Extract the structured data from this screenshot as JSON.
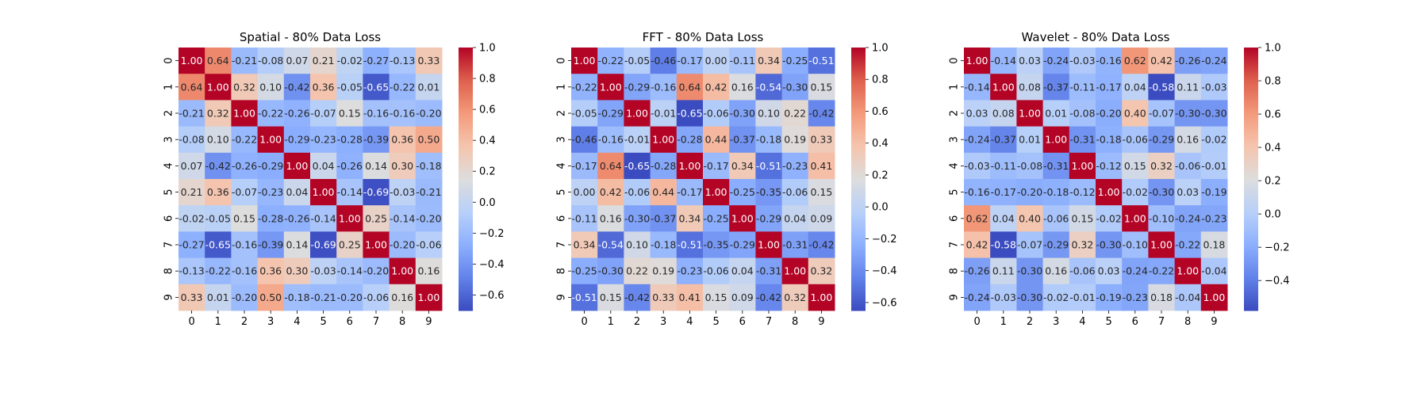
{
  "chart_data": [
    {
      "type": "heatmap",
      "title": "Spatial - 80% Data Loss",
      "x_labels": [
        "0",
        "1",
        "2",
        "3",
        "4",
        "5",
        "6",
        "7",
        "8",
        "9"
      ],
      "y_labels": [
        "0",
        "1",
        "2",
        "3",
        "4",
        "5",
        "6",
        "7",
        "8",
        "9"
      ],
      "colormap": "coolwarm",
      "vmin": -0.7,
      "vmax": 1.0,
      "colorbar_ticks": [
        1.0,
        0.8,
        0.6,
        0.4,
        0.2,
        0.0,
        -0.2,
        -0.4,
        -0.6
      ],
      "colorbar_tick_labels": [
        "1.0",
        "0.8",
        "0.6",
        "0.4",
        "0.2",
        "0.0",
        "−0.2",
        "−0.4",
        "−0.6"
      ],
      "values": [
        [
          1.0,
          0.64,
          -0.21,
          -0.08,
          0.07,
          0.21,
          -0.02,
          -0.27,
          -0.13,
          0.33
        ],
        [
          0.64,
          1.0,
          0.32,
          0.1,
          -0.42,
          0.36,
          -0.05,
          -0.65,
          -0.22,
          0.01
        ],
        [
          -0.21,
          0.32,
          1.0,
          -0.22,
          -0.26,
          -0.07,
          0.15,
          -0.16,
          -0.16,
          -0.2
        ],
        [
          -0.08,
          0.1,
          -0.22,
          1.0,
          -0.29,
          -0.23,
          -0.28,
          -0.39,
          0.36,
          0.5
        ],
        [
          0.07,
          -0.42,
          -0.26,
          -0.29,
          1.0,
          0.04,
          -0.26,
          0.14,
          0.3,
          -0.18
        ],
        [
          0.21,
          0.36,
          -0.07,
          -0.23,
          0.04,
          1.0,
          -0.14,
          -0.69,
          -0.03,
          -0.21
        ],
        [
          -0.02,
          -0.05,
          0.15,
          -0.28,
          -0.26,
          -0.14,
          1.0,
          0.25,
          -0.14,
          -0.2
        ],
        [
          -0.27,
          -0.65,
          -0.16,
          -0.39,
          0.14,
          -0.69,
          0.25,
          1.0,
          -0.2,
          -0.06
        ],
        [
          -0.13,
          -0.22,
          -0.16,
          0.36,
          0.3,
          -0.03,
          -0.14,
          -0.2,
          1.0,
          0.16
        ],
        [
          0.33,
          0.01,
          -0.2,
          0.5,
          -0.18,
          -0.21,
          -0.2,
          -0.06,
          0.16,
          1.0
        ]
      ]
    },
    {
      "type": "heatmap",
      "title": "FFT - 80% Data Loss",
      "x_labels": [
        "0",
        "1",
        "2",
        "3",
        "4",
        "5",
        "6",
        "7",
        "8",
        "9"
      ],
      "y_labels": [
        "0",
        "1",
        "2",
        "3",
        "4",
        "5",
        "6",
        "7",
        "8",
        "9"
      ],
      "colormap": "coolwarm",
      "vmin": -0.65,
      "vmax": 1.0,
      "colorbar_ticks": [
        1.0,
        0.8,
        0.6,
        0.4,
        0.2,
        0.0,
        -0.2,
        -0.4,
        -0.6
      ],
      "colorbar_tick_labels": [
        "1.0",
        "0.8",
        "0.6",
        "0.4",
        "0.2",
        "0.0",
        "−0.2",
        "−0.4",
        "−0.6"
      ],
      "values": [
        [
          1.0,
          -0.22,
          -0.05,
          -0.46,
          -0.17,
          0.0,
          -0.11,
          0.34,
          -0.25,
          -0.51
        ],
        [
          -0.22,
          1.0,
          -0.29,
          -0.16,
          0.64,
          0.42,
          0.16,
          -0.54,
          -0.3,
          0.15
        ],
        [
          -0.05,
          -0.29,
          1.0,
          -0.01,
          -0.65,
          -0.06,
          -0.3,
          0.1,
          0.22,
          -0.42
        ],
        [
          -0.46,
          -0.16,
          -0.01,
          1.0,
          -0.28,
          0.44,
          -0.37,
          -0.18,
          0.19,
          0.33
        ],
        [
          -0.17,
          0.64,
          -0.65,
          -0.28,
          1.0,
          -0.17,
          0.34,
          -0.51,
          -0.23,
          0.41
        ],
        [
          0.0,
          0.42,
          -0.06,
          0.44,
          -0.17,
          1.0,
          -0.25,
          -0.35,
          -0.06,
          0.15
        ],
        [
          -0.11,
          0.16,
          -0.3,
          -0.37,
          0.34,
          -0.25,
          1.0,
          -0.29,
          0.04,
          0.09
        ],
        [
          0.34,
          -0.54,
          0.1,
          -0.18,
          -0.51,
          -0.35,
          -0.29,
          1.0,
          -0.31,
          -0.42
        ],
        [
          -0.25,
          -0.3,
          0.22,
          0.19,
          -0.23,
          -0.06,
          0.04,
          -0.31,
          1.0,
          0.32
        ],
        [
          -0.51,
          0.15,
          -0.42,
          0.33,
          0.41,
          0.15,
          0.09,
          -0.42,
          0.32,
          1.0
        ]
      ]
    },
    {
      "type": "heatmap",
      "title": "Wavelet - 80% Data Loss",
      "x_labels": [
        "0",
        "1",
        "2",
        "3",
        "4",
        "5",
        "6",
        "7",
        "8",
        "9"
      ],
      "y_labels": [
        "0",
        "1",
        "2",
        "3",
        "4",
        "5",
        "6",
        "7",
        "8",
        "9"
      ],
      "colormap": "coolwarm",
      "vmin": -0.58,
      "vmax": 1.0,
      "colorbar_ticks": [
        1.0,
        0.8,
        0.6,
        0.4,
        0.2,
        0.0,
        -0.2,
        -0.4
      ],
      "colorbar_tick_labels": [
        "1.0",
        "0.8",
        "0.6",
        "0.4",
        "0.2",
        "0.0",
        "−0.2",
        "−0.4"
      ],
      "values": [
        [
          1.0,
          -0.14,
          0.03,
          -0.24,
          -0.03,
          -0.16,
          0.62,
          0.42,
          -0.26,
          -0.24
        ],
        [
          -0.14,
          1.0,
          0.08,
          -0.37,
          -0.11,
          -0.17,
          0.04,
          -0.58,
          0.11,
          -0.03
        ],
        [
          0.03,
          0.08,
          1.0,
          0.01,
          -0.08,
          -0.2,
          0.4,
          -0.07,
          -0.3,
          -0.3
        ],
        [
          -0.24,
          -0.37,
          0.01,
          1.0,
          -0.31,
          -0.18,
          -0.06,
          -0.29,
          0.16,
          -0.02
        ],
        [
          -0.03,
          -0.11,
          -0.08,
          -0.31,
          1.0,
          -0.12,
          0.15,
          0.32,
          -0.06,
          -0.01
        ],
        [
          -0.16,
          -0.17,
          -0.2,
          -0.18,
          -0.12,
          1.0,
          -0.02,
          -0.3,
          0.03,
          -0.19
        ],
        [
          0.62,
          0.04,
          0.4,
          -0.06,
          0.15,
          -0.02,
          1.0,
          -0.1,
          -0.24,
          -0.23
        ],
        [
          0.42,
          -0.58,
          -0.07,
          -0.29,
          0.32,
          -0.3,
          -0.1,
          1.0,
          -0.22,
          0.18
        ],
        [
          -0.26,
          0.11,
          -0.3,
          0.16,
          -0.06,
          0.03,
          -0.24,
          -0.22,
          1.0,
          -0.04
        ],
        [
          -0.24,
          -0.03,
          -0.3,
          -0.02,
          -0.01,
          -0.19,
          -0.23,
          0.18,
          -0.04,
          1.0
        ]
      ]
    }
  ]
}
